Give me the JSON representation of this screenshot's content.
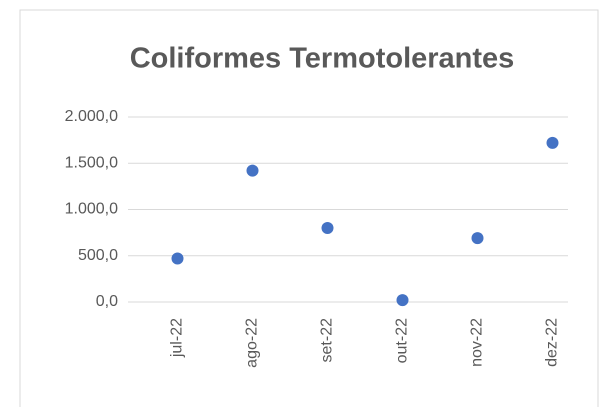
{
  "chart_data": {
    "type": "scatter",
    "title": "Coliformes Termotolerantes",
    "categories": [
      "jul-22",
      "ago-22",
      "set-22",
      "out-22",
      "nov-22",
      "dez-22"
    ],
    "values": [
      470,
      1420,
      800,
      20,
      690,
      1720
    ],
    "color": "#4472c4",
    "ylim": [
      0,
      2000
    ],
    "yticks": [
      {
        "value": 0,
        "label": "0,0"
      },
      {
        "value": 500,
        "label": "500,0"
      },
      {
        "value": 1000,
        "label": "1.000,0"
      },
      {
        "value": 1500,
        "label": "1.500,0"
      },
      {
        "value": 2000,
        "label": "2.000,0"
      }
    ],
    "grid": true
  }
}
